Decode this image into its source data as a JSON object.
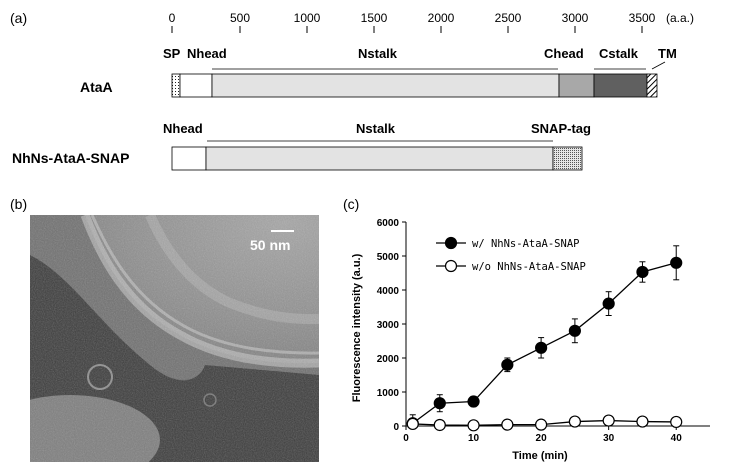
{
  "panel_a": {
    "label": "(a)",
    "axis_ticks": [
      "0",
      "500",
      "1000",
      "1500",
      "2000",
      "2500",
      "3000",
      "3500"
    ],
    "axis_unit": "(a.a.)",
    "ataa_name": "AtaA",
    "ataa_domains": [
      "SP",
      "Nhead",
      "Nstalk",
      "Chead",
      "Cstalk",
      "TM"
    ],
    "construct_name": "NhNs-AtaA-SNAP",
    "construct_domains": [
      "Nhead",
      "Nstalk",
      "SNAP-tag"
    ]
  },
  "panel_b": {
    "label": "(b)",
    "scale_bar_text": "50 nm"
  },
  "panel_c": {
    "label": "(c)"
  },
  "chart_data": {
    "type": "scatter",
    "xlabel": "Time (min)",
    "ylabel": "Fluorescence intensity (a.u.)",
    "xlim": [
      0,
      45
    ],
    "ylim": [
      0,
      6000
    ],
    "xticks": [
      0,
      10,
      20,
      30,
      40
    ],
    "yticks": [
      0,
      1000,
      2000,
      3000,
      4000,
      5000,
      6000
    ],
    "legend_position": "top-left",
    "series": [
      {
        "name": "w/  NhNs-AtaA-SNAP",
        "marker": "filled-circle",
        "x": [
          1,
          5,
          10,
          15,
          20,
          25,
          30,
          35,
          40
        ],
        "y": [
          80,
          670,
          720,
          1800,
          2300,
          2800,
          3600,
          4530,
          4800
        ],
        "err": [
          250,
          250,
          150,
          200,
          300,
          350,
          350,
          300,
          500
        ]
      },
      {
        "name": "w/o NhNs-AtaA-SNAP",
        "marker": "open-circle",
        "x": [
          1,
          5,
          10,
          15,
          20,
          25,
          30,
          35,
          40
        ],
        "y": [
          60,
          30,
          20,
          40,
          40,
          130,
          160,
          130,
          120
        ],
        "err": [
          60,
          40,
          30,
          30,
          30,
          60,
          60,
          50,
          50
        ]
      }
    ]
  }
}
